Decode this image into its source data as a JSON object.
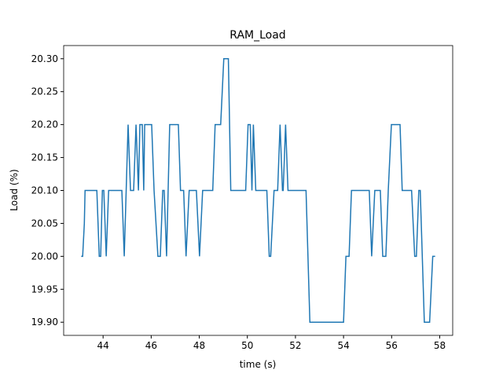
{
  "chart_data": {
    "type": "line",
    "title": "RAM_Load",
    "x_label": "time (s)",
    "y_label": "Load (%)",
    "x": [
      43.09,
      43.15,
      43.22,
      43.25,
      43.74,
      43.84,
      43.9,
      43.97,
      44.03,
      44.13,
      44.23,
      44.78,
      44.88,
      45.04,
      45.14,
      45.27,
      45.37,
      45.47,
      45.53,
      45.63,
      45.69,
      45.73,
      46.02,
      46.12,
      46.28,
      46.38,
      46.48,
      46.54,
      46.64,
      46.77,
      47.13,
      47.22,
      47.35,
      47.45,
      47.58,
      47.88,
      48.01,
      48.14,
      48.56,
      48.66,
      48.89,
      49.02,
      49.21,
      49.31,
      49.93,
      50.03,
      50.12,
      50.19,
      50.25,
      50.35,
      50.81,
      50.91,
      50.97,
      51.11,
      51.26,
      51.36,
      51.46,
      51.49,
      51.59,
      51.69,
      52.44,
      52.6,
      54.0,
      54.1,
      54.23,
      54.33,
      55.07,
      55.17,
      55.3,
      55.53,
      55.63,
      55.76,
      55.86,
      55.99,
      56.35,
      56.44,
      56.83,
      56.96,
      57.03,
      57.13,
      57.19,
      57.36,
      57.58,
      57.71,
      57.81
    ],
    "series": [
      {
        "name": "RAM_Load",
        "color": "#1f77b4",
        "values": [
          20.0,
          20.0,
          20.05,
          20.1,
          20.1,
          20.0,
          20.0,
          20.1,
          20.1,
          20.0,
          20.1,
          20.1,
          20.0,
          20.2,
          20.1,
          20.1,
          20.2,
          20.1,
          20.2,
          20.2,
          20.1,
          20.2,
          20.2,
          20.1,
          20.0,
          20.0,
          20.1,
          20.1,
          20.0,
          20.2,
          20.2,
          20.1,
          20.1,
          20.0,
          20.1,
          20.1,
          20.0,
          20.1,
          20.1,
          20.2,
          20.2,
          20.3,
          20.3,
          20.1,
          20.1,
          20.2,
          20.2,
          20.1,
          20.2,
          20.1,
          20.1,
          20.0,
          20.0,
          20.1,
          20.1,
          20.2,
          20.1,
          20.1,
          20.2,
          20.1,
          20.1,
          19.9,
          19.9,
          20.0,
          20.0,
          20.1,
          20.1,
          20.0,
          20.1,
          20.1,
          20.0,
          20.0,
          20.1,
          20.2,
          20.2,
          20.1,
          20.1,
          20.0,
          20.0,
          20.1,
          20.1,
          19.9,
          19.9,
          20.0,
          20.0
        ]
      }
    ],
    "xlim": [
      42.36,
      58.54
    ],
    "xticks": [
      44,
      46,
      48,
      50,
      52,
      54,
      56,
      58
    ],
    "ylim": [
      19.88,
      20.32
    ],
    "yticks": [
      {
        "value": 19.9,
        "label": "19.90"
      },
      {
        "value": 19.95,
        "label": "19.95"
      },
      {
        "value": 20.0,
        "label": "20.00"
      },
      {
        "value": 20.05,
        "label": "20.05"
      },
      {
        "value": 20.1,
        "label": "20.10"
      },
      {
        "value": 20.15,
        "label": "20.15"
      },
      {
        "value": 20.2,
        "label": "20.20"
      },
      {
        "value": 20.25,
        "label": "20.25"
      },
      {
        "value": 20.3,
        "label": "20.30"
      }
    ]
  }
}
